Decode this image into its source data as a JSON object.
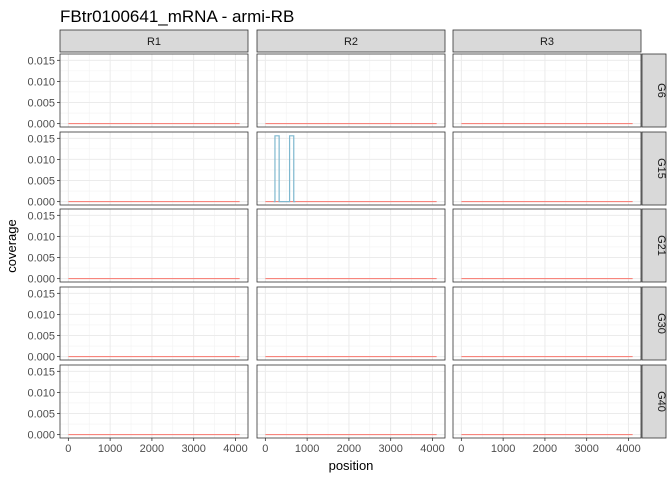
{
  "chart_data": {
    "type": "line",
    "title": "FBtr0100641_mRNA - armi-RB",
    "xlabel": "position",
    "ylabel": "coverage",
    "facet_cols": [
      "R1",
      "R2",
      "R3"
    ],
    "facet_rows": [
      "G6",
      "G15",
      "G21",
      "G30",
      "G40"
    ],
    "xlim": [
      -200,
      4300
    ],
    "ylim": [
      -0.0008,
      0.0165
    ],
    "x_ticks": [
      0,
      1000,
      2000,
      3000,
      4000
    ],
    "y_ticks": [
      0.0,
      0.005,
      0.01,
      0.015
    ],
    "x_tick_labels": [
      "0",
      "1000",
      "2000",
      "3000",
      "4000"
    ],
    "y_tick_labels": [
      "0.000",
      "0.005",
      "0.010",
      "0.015"
    ],
    "grid": true,
    "series_colors": {
      "flat": "#F8766D",
      "peak": "#7FB8CF"
    },
    "baseline": {
      "x": [
        0,
        4100
      ],
      "y": [
        0,
        0
      ]
    },
    "highlight": {
      "row": "G15",
      "col": "R2",
      "x": [
        200,
        230,
        230,
        330,
        330,
        580,
        580,
        680,
        680,
        720
      ],
      "y": [
        0,
        0,
        0.0156,
        0.0156,
        0,
        0,
        0.0156,
        0.0156,
        0,
        0
      ]
    }
  }
}
